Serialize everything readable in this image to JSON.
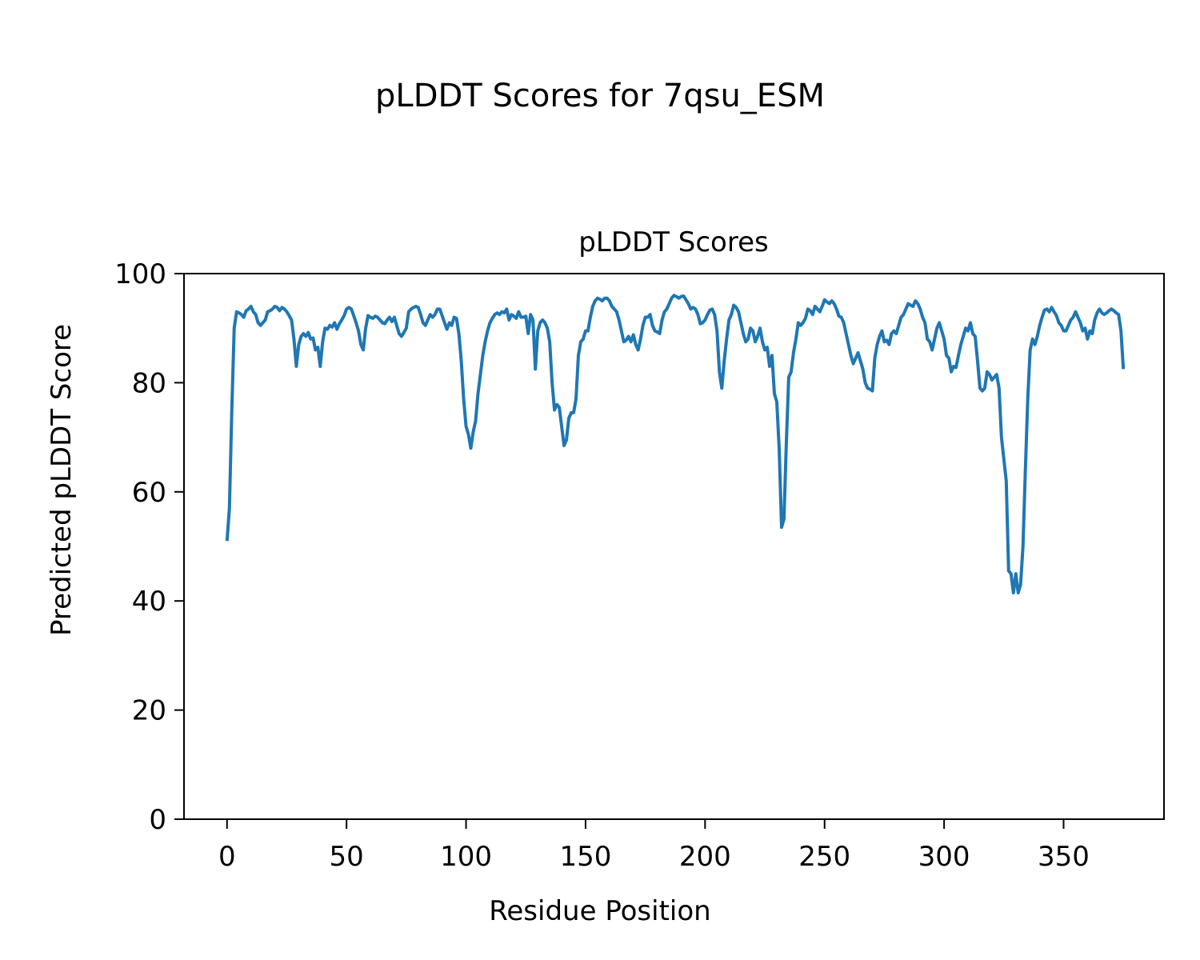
{
  "figure": {
    "suptitle": "pLDDT Scores for 7qsu_ESM"
  },
  "chart_data": {
    "type": "line",
    "title": "pLDDT Scores",
    "xlabel": "Residue Position",
    "ylabel": "Predicted pLDDT Score",
    "xlim": [
      -18,
      392
    ],
    "ylim": [
      0,
      100
    ],
    "xticks": [
      0,
      50,
      100,
      150,
      200,
      250,
      300,
      350
    ],
    "yticks": [
      0,
      20,
      40,
      60,
      80,
      100
    ],
    "grid": false,
    "legend": "none",
    "series": [
      {
        "color": "#1f77b4",
        "x_start": 0,
        "x_step": 1,
        "values": [
          51.0,
          57.0,
          75.0,
          90.0,
          93.0,
          92.8,
          92.5,
          92.0,
          93.2,
          93.5,
          94.0,
          93.0,
          92.5,
          91.0,
          90.5,
          91.0,
          91.5,
          93.0,
          93.2,
          93.5,
          94.0,
          93.8,
          93.2,
          93.8,
          93.5,
          93.0,
          92.3,
          91.5,
          88.0,
          83.0,
          87.0,
          88.5,
          89.0,
          88.5,
          89.2,
          88.0,
          88.2,
          86.0,
          86.5,
          83.0,
          87.5,
          90.0,
          89.8,
          90.5,
          90.2,
          91.0,
          89.8,
          90.8,
          91.5,
          92.3,
          93.5,
          93.8,
          93.5,
          92.3,
          91.0,
          89.5,
          87.0,
          86.0,
          90.0,
          92.3,
          92.0,
          91.8,
          92.2,
          92.0,
          91.5,
          91.0,
          90.8,
          91.5,
          92.0,
          91.2,
          92.0,
          90.5,
          89.0,
          88.5,
          89.2,
          90.0,
          93.0,
          93.5,
          93.8,
          94.0,
          93.8,
          92.5,
          91.0,
          90.5,
          91.5,
          92.5,
          92.0,
          92.5,
          93.5,
          93.5,
          92.3,
          91.0,
          89.8,
          91.0,
          90.5,
          92.0,
          91.8,
          89.0,
          84.0,
          77.0,
          72.0,
          70.5,
          68.0,
          71.0,
          73.0,
          78.0,
          81.5,
          85.0,
          87.5,
          89.5,
          91.0,
          91.8,
          92.5,
          92.8,
          92.5,
          93.0,
          92.8,
          93.5,
          91.5,
          92.5,
          92.2,
          91.8,
          93.0,
          92.0,
          92.0,
          92.2,
          89.0,
          92.5,
          91.5,
          82.5,
          89.5,
          91.0,
          91.5,
          91.0,
          90.0,
          87.5,
          80.0,
          75.0,
          76.0,
          75.5,
          72.0,
          68.5,
          69.5,
          73.5,
          74.5,
          74.5,
          77.0,
          85.0,
          87.5,
          88.0,
          89.5,
          89.5,
          92.0,
          94.0,
          95.0,
          95.5,
          95.3,
          95.0,
          95.5,
          95.5,
          95.0,
          94.0,
          93.5,
          93.0,
          91.5,
          89.5,
          87.5,
          87.8,
          88.5,
          87.5,
          88.8,
          87.0,
          86.0,
          88.0,
          90.5,
          92.0,
          92.0,
          92.5,
          90.5,
          89.5,
          89.3,
          89.0,
          91.5,
          93.0,
          93.5,
          94.5,
          95.5,
          96.0,
          95.8,
          95.5,
          95.8,
          95.9,
          95.2,
          94.5,
          93.5,
          93.8,
          93.5,
          92.5,
          90.8,
          91.0,
          91.5,
          92.5,
          93.3,
          93.5,
          92.5,
          89.5,
          82.0,
          79.0,
          84.0,
          88.0,
          91.5,
          92.5,
          94.2,
          93.8,
          93.0,
          91.0,
          89.0,
          87.5,
          88.0,
          90.0,
          89.5,
          87.5,
          88.5,
          90.0,
          87.5,
          86.0,
          86.5,
          83.0,
          85.0,
          78.0,
          76.5,
          68.0,
          53.5,
          55.0,
          69.0,
          81.0,
          82.0,
          85.5,
          88.0,
          91.0,
          90.5,
          91.0,
          91.8,
          93.5,
          93.2,
          92.5,
          94.0,
          93.5,
          93.0,
          94.0,
          95.2,
          94.8,
          94.5,
          95.0,
          94.5,
          93.5,
          92.2,
          92.0,
          91.0,
          89.0,
          87.0,
          85.0,
          83.5,
          84.5,
          85.5,
          84.0,
          82.5,
          80.0,
          79.0,
          78.8,
          78.5,
          84.5,
          87.0,
          88.5,
          89.5,
          87.5,
          87.8,
          87.0,
          89.0,
          89.5,
          89.0,
          90.5,
          92.0,
          92.5,
          93.5,
          94.5,
          94.2,
          94.0,
          95.0,
          94.5,
          93.5,
          92.0,
          91.0,
          88.0,
          87.5,
          86.0,
          88.0,
          90.0,
          91.0,
          89.5,
          88.0,
          85.0,
          84.5,
          82.0,
          83.0,
          82.8,
          85.0,
          87.0,
          88.5,
          90.0,
          89.5,
          91.0,
          89.0,
          88.5,
          84.0,
          79.0,
          78.5,
          79.0,
          82.0,
          81.5,
          80.5,
          81.0,
          81.5,
          79.0,
          70.0,
          66.0,
          62.0,
          45.5,
          45.0,
          41.5,
          45.0,
          41.5,
          43.0,
          50.0,
          64.0,
          77.0,
          86.0,
          88.0,
          87.0,
          88.5,
          90.5,
          92.0,
          93.3,
          93.5,
          93.0,
          93.8,
          93.0,
          92.3,
          91.0,
          90.5,
          89.5,
          89.5,
          90.5,
          91.5,
          92.0,
          93.0,
          92.0,
          91.0,
          89.5,
          90.0,
          88.0,
          89.5,
          89.0,
          91.5,
          92.8,
          93.5,
          92.8,
          92.5,
          92.8,
          93.2,
          93.5,
          93.2,
          92.8,
          92.5,
          89.5,
          82.5
        ]
      }
    ]
  }
}
